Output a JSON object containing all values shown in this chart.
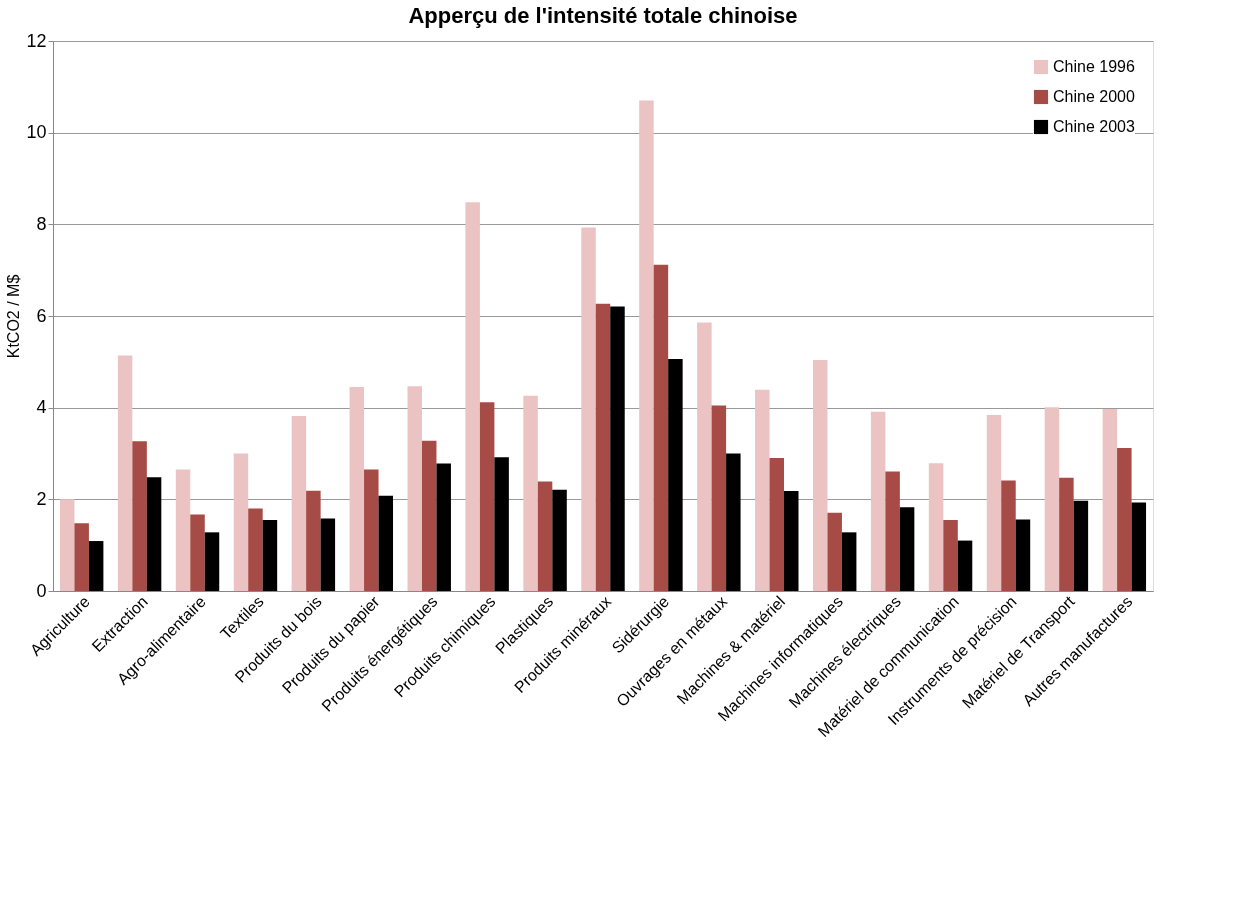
{
  "chart_data": {
    "type": "bar",
    "title": "Apperçu de l'intensité totale chinoise",
    "ylabel": "KtCO2 / M$",
    "categories": [
      "Agriculture",
      "Extraction",
      "Agro-alimentaire",
      "Textiles",
      "Produits du bois",
      "Produits du papier",
      "Produits énergétiques",
      "Produits chimiques",
      "Plastiques",
      "Produits minéraux",
      "Sidérurgie",
      "Ouvrages en métaux",
      "Machines & matériel",
      "Machines informatiques",
      "Machines électriques",
      "Matériel de communication",
      "Instruments de précision",
      "Matériel de Transport",
      "Autres manufactures"
    ],
    "series": [
      {
        "name": "Chine 1996",
        "color": "#ebc3c2",
        "values": [
          2.0,
          5.14,
          2.65,
          3.0,
          3.82,
          4.45,
          4.47,
          8.48,
          4.26,
          7.93,
          10.7,
          5.86,
          4.39,
          5.04,
          3.91,
          2.79,
          3.84,
          4.01,
          3.97
        ]
      },
      {
        "name": "Chine 2000",
        "color": "#a64b45",
        "values": [
          1.48,
          3.27,
          1.67,
          1.8,
          2.19,
          2.65,
          3.28,
          4.12,
          2.39,
          6.27,
          7.12,
          4.05,
          2.9,
          1.71,
          2.61,
          1.55,
          2.41,
          2.47,
          3.12
        ]
      },
      {
        "name": "Chine 2003",
        "color": "#000000",
        "values": [
          1.09,
          2.48,
          1.28,
          1.55,
          1.58,
          2.08,
          2.78,
          2.92,
          2.21,
          6.21,
          5.06,
          3.0,
          2.18,
          1.28,
          1.83,
          1.1,
          1.56,
          1.97,
          1.93
        ]
      }
    ],
    "ylim": [
      0,
      12
    ],
    "yticks": [
      0,
      2,
      4,
      6,
      8,
      10,
      12
    ],
    "grid": "y",
    "legend": "top right"
  }
}
